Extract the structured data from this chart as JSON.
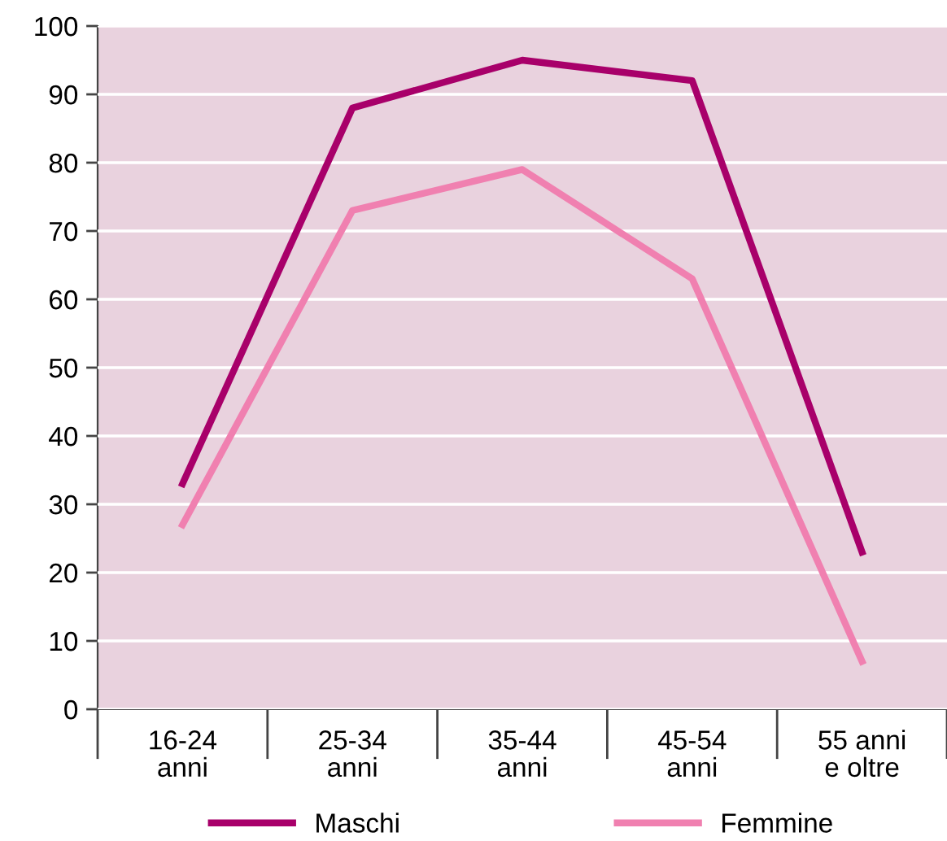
{
  "chart_data": {
    "type": "line",
    "categories": [
      "16-24\nanni",
      "25-34\nanni",
      "35-44\nanni",
      "45-54\nanni",
      "55 anni\ne oltre"
    ],
    "series": [
      {
        "name": "Maschi",
        "color": "#a8006a",
        "values": [
          33,
          88,
          95,
          92,
          23
        ]
      },
      {
        "name": "Femmine",
        "color": "#f080b0",
        "values": [
          27,
          73,
          79,
          63,
          7
        ]
      }
    ],
    "ylim": [
      0,
      100
    ],
    "yticks": [
      0,
      10,
      20,
      30,
      40,
      50,
      60,
      70,
      80,
      90,
      100
    ],
    "grid": "y",
    "legend": "bottom",
    "marker": "none",
    "line_style": "solid"
  }
}
